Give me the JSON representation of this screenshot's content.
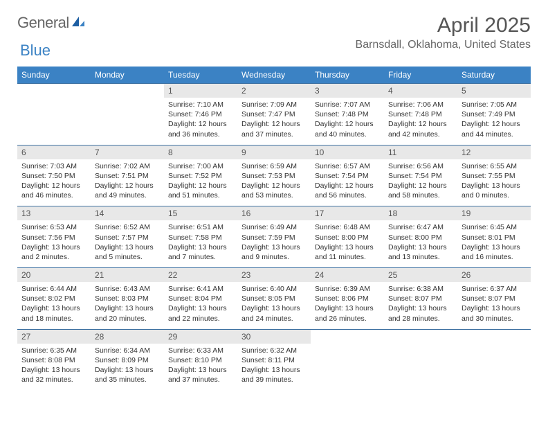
{
  "logo": {
    "part1": "General",
    "part2": "Blue"
  },
  "title": "April 2025",
  "location": "Barnsdall, Oklahoma, United States",
  "colors": {
    "header_bg": "#3b82c4",
    "header_text": "#ffffff",
    "daynum_bg": "#e8e8e8",
    "daynum_text": "#555555",
    "body_text": "#333333",
    "rule": "#3b6fa0"
  },
  "dow": [
    "Sunday",
    "Monday",
    "Tuesday",
    "Wednesday",
    "Thursday",
    "Friday",
    "Saturday"
  ],
  "weeks": [
    [
      {
        "n": "",
        "sr": "",
        "ss": "",
        "dl": ""
      },
      {
        "n": "",
        "sr": "",
        "ss": "",
        "dl": ""
      },
      {
        "n": "1",
        "sr": "Sunrise: 7:10 AM",
        "ss": "Sunset: 7:46 PM",
        "dl": "Daylight: 12 hours and 36 minutes."
      },
      {
        "n": "2",
        "sr": "Sunrise: 7:09 AM",
        "ss": "Sunset: 7:47 PM",
        "dl": "Daylight: 12 hours and 37 minutes."
      },
      {
        "n": "3",
        "sr": "Sunrise: 7:07 AM",
        "ss": "Sunset: 7:48 PM",
        "dl": "Daylight: 12 hours and 40 minutes."
      },
      {
        "n": "4",
        "sr": "Sunrise: 7:06 AM",
        "ss": "Sunset: 7:48 PM",
        "dl": "Daylight: 12 hours and 42 minutes."
      },
      {
        "n": "5",
        "sr": "Sunrise: 7:05 AM",
        "ss": "Sunset: 7:49 PM",
        "dl": "Daylight: 12 hours and 44 minutes."
      }
    ],
    [
      {
        "n": "6",
        "sr": "Sunrise: 7:03 AM",
        "ss": "Sunset: 7:50 PM",
        "dl": "Daylight: 12 hours and 46 minutes."
      },
      {
        "n": "7",
        "sr": "Sunrise: 7:02 AM",
        "ss": "Sunset: 7:51 PM",
        "dl": "Daylight: 12 hours and 49 minutes."
      },
      {
        "n": "8",
        "sr": "Sunrise: 7:00 AM",
        "ss": "Sunset: 7:52 PM",
        "dl": "Daylight: 12 hours and 51 minutes."
      },
      {
        "n": "9",
        "sr": "Sunrise: 6:59 AM",
        "ss": "Sunset: 7:53 PM",
        "dl": "Daylight: 12 hours and 53 minutes."
      },
      {
        "n": "10",
        "sr": "Sunrise: 6:57 AM",
        "ss": "Sunset: 7:54 PM",
        "dl": "Daylight: 12 hours and 56 minutes."
      },
      {
        "n": "11",
        "sr": "Sunrise: 6:56 AM",
        "ss": "Sunset: 7:54 PM",
        "dl": "Daylight: 12 hours and 58 minutes."
      },
      {
        "n": "12",
        "sr": "Sunrise: 6:55 AM",
        "ss": "Sunset: 7:55 PM",
        "dl": "Daylight: 13 hours and 0 minutes."
      }
    ],
    [
      {
        "n": "13",
        "sr": "Sunrise: 6:53 AM",
        "ss": "Sunset: 7:56 PM",
        "dl": "Daylight: 13 hours and 2 minutes."
      },
      {
        "n": "14",
        "sr": "Sunrise: 6:52 AM",
        "ss": "Sunset: 7:57 PM",
        "dl": "Daylight: 13 hours and 5 minutes."
      },
      {
        "n": "15",
        "sr": "Sunrise: 6:51 AM",
        "ss": "Sunset: 7:58 PM",
        "dl": "Daylight: 13 hours and 7 minutes."
      },
      {
        "n": "16",
        "sr": "Sunrise: 6:49 AM",
        "ss": "Sunset: 7:59 PM",
        "dl": "Daylight: 13 hours and 9 minutes."
      },
      {
        "n": "17",
        "sr": "Sunrise: 6:48 AM",
        "ss": "Sunset: 8:00 PM",
        "dl": "Daylight: 13 hours and 11 minutes."
      },
      {
        "n": "18",
        "sr": "Sunrise: 6:47 AM",
        "ss": "Sunset: 8:00 PM",
        "dl": "Daylight: 13 hours and 13 minutes."
      },
      {
        "n": "19",
        "sr": "Sunrise: 6:45 AM",
        "ss": "Sunset: 8:01 PM",
        "dl": "Daylight: 13 hours and 16 minutes."
      }
    ],
    [
      {
        "n": "20",
        "sr": "Sunrise: 6:44 AM",
        "ss": "Sunset: 8:02 PM",
        "dl": "Daylight: 13 hours and 18 minutes."
      },
      {
        "n": "21",
        "sr": "Sunrise: 6:43 AM",
        "ss": "Sunset: 8:03 PM",
        "dl": "Daylight: 13 hours and 20 minutes."
      },
      {
        "n": "22",
        "sr": "Sunrise: 6:41 AM",
        "ss": "Sunset: 8:04 PM",
        "dl": "Daylight: 13 hours and 22 minutes."
      },
      {
        "n": "23",
        "sr": "Sunrise: 6:40 AM",
        "ss": "Sunset: 8:05 PM",
        "dl": "Daylight: 13 hours and 24 minutes."
      },
      {
        "n": "24",
        "sr": "Sunrise: 6:39 AM",
        "ss": "Sunset: 8:06 PM",
        "dl": "Daylight: 13 hours and 26 minutes."
      },
      {
        "n": "25",
        "sr": "Sunrise: 6:38 AM",
        "ss": "Sunset: 8:07 PM",
        "dl": "Daylight: 13 hours and 28 minutes."
      },
      {
        "n": "26",
        "sr": "Sunrise: 6:37 AM",
        "ss": "Sunset: 8:07 PM",
        "dl": "Daylight: 13 hours and 30 minutes."
      }
    ],
    [
      {
        "n": "27",
        "sr": "Sunrise: 6:35 AM",
        "ss": "Sunset: 8:08 PM",
        "dl": "Daylight: 13 hours and 32 minutes."
      },
      {
        "n": "28",
        "sr": "Sunrise: 6:34 AM",
        "ss": "Sunset: 8:09 PM",
        "dl": "Daylight: 13 hours and 35 minutes."
      },
      {
        "n": "29",
        "sr": "Sunrise: 6:33 AM",
        "ss": "Sunset: 8:10 PM",
        "dl": "Daylight: 13 hours and 37 minutes."
      },
      {
        "n": "30",
        "sr": "Sunrise: 6:32 AM",
        "ss": "Sunset: 8:11 PM",
        "dl": "Daylight: 13 hours and 39 minutes."
      },
      {
        "n": "",
        "sr": "",
        "ss": "",
        "dl": ""
      },
      {
        "n": "",
        "sr": "",
        "ss": "",
        "dl": ""
      },
      {
        "n": "",
        "sr": "",
        "ss": "",
        "dl": ""
      }
    ]
  ]
}
